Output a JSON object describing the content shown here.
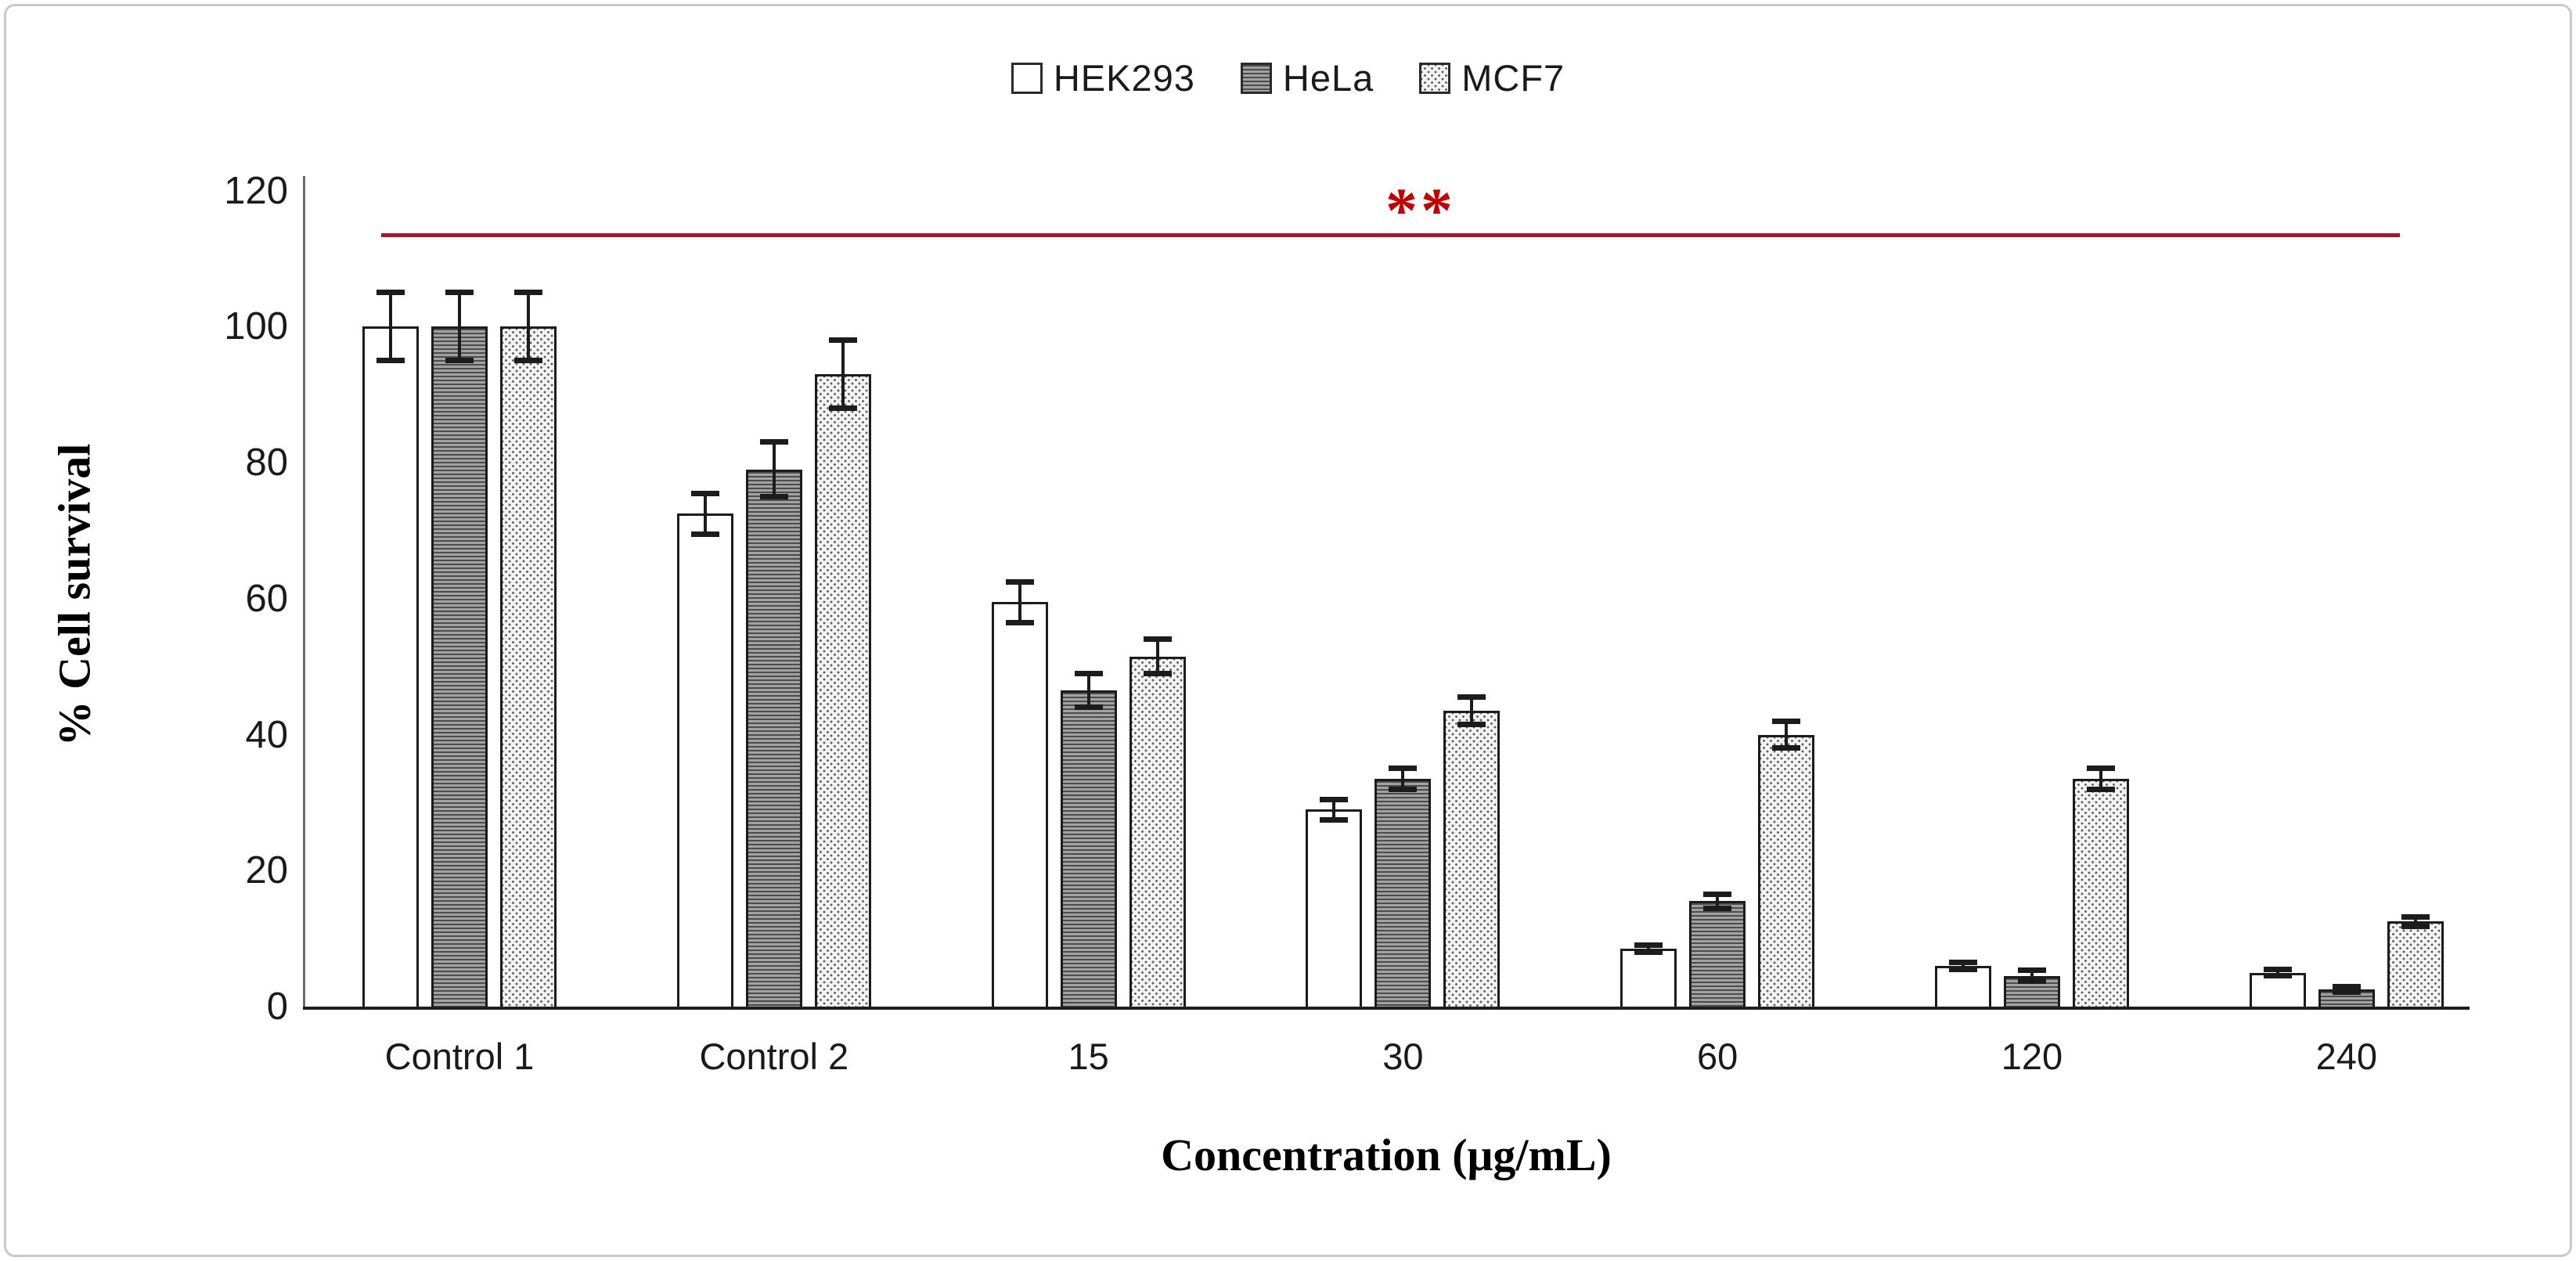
{
  "legend": {
    "items": [
      {
        "label": "HEK293",
        "pattern": "plain"
      },
      {
        "label": "HeLa",
        "pattern": "hlines"
      },
      {
        "label": "MCF7",
        "pattern": "dots"
      }
    ]
  },
  "y_axis": {
    "title": "% Cell survival",
    "ticks": [
      0,
      20,
      40,
      60,
      80,
      100,
      120
    ]
  },
  "x_axis": {
    "title": "Concentration (μg/mL)",
    "categories": [
      "Control 1",
      "Control 2",
      "15",
      "30",
      "60",
      "120",
      "240"
    ]
  },
  "annotation": {
    "label": "**",
    "color": "#c00000",
    "line_color": "#a91328",
    "line_y_value": 113.5
  },
  "chart_data": {
    "type": "bar",
    "title": "",
    "xlabel": "Concentration (μg/mL)",
    "ylabel": "% Cell survival",
    "ylim": [
      0,
      120
    ],
    "grid": false,
    "legend_position": "top-center",
    "categories": [
      "Control 1",
      "Control 2",
      "15",
      "30",
      "60",
      "120",
      "240"
    ],
    "series": [
      {
        "name": "HEK293",
        "pattern": "plain",
        "values": [
          100,
          72.5,
          59.5,
          29,
          8.5,
          6,
          5
        ],
        "errors": [
          5,
          3,
          3,
          1.5,
          0.5,
          0.5,
          0.5
        ]
      },
      {
        "name": "HeLa",
        "pattern": "hlines",
        "values": [
          100,
          79,
          46.5,
          33.5,
          15.5,
          4.5,
          2.5
        ],
        "errors": [
          5,
          4,
          2.5,
          1.5,
          1,
          0.8,
          0.4
        ]
      },
      {
        "name": "MCF7",
        "pattern": "dots",
        "values": [
          100,
          93,
          51.5,
          43.5,
          40,
          33.5,
          12.5
        ],
        "errors": [
          5,
          5,
          2.5,
          2,
          2,
          1.5,
          0.7
        ]
      }
    ],
    "significance": {
      "label": "**",
      "y_value": 113.5,
      "spans_categories": [
        "Control 1",
        "240"
      ]
    }
  }
}
